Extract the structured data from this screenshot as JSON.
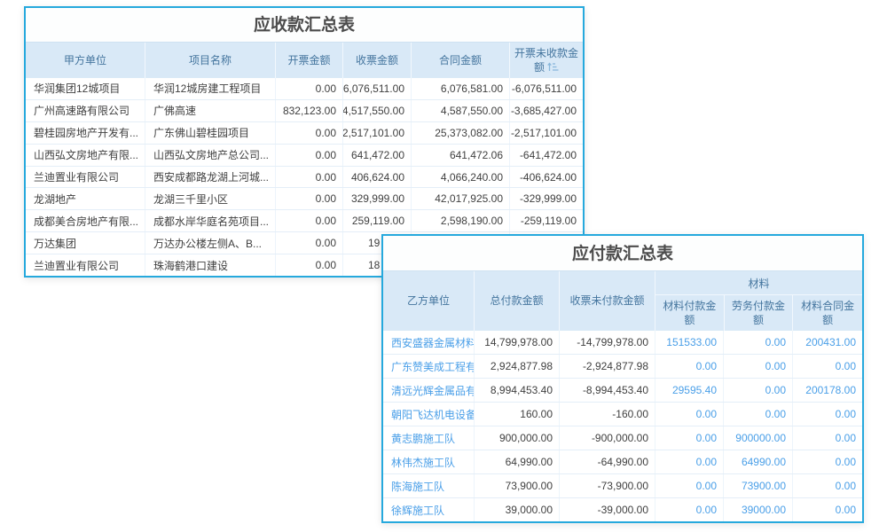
{
  "receivables": {
    "title": "应收款汇总表",
    "columns": [
      "甲方单位",
      "项目名称",
      "开票金额",
      "收票金额",
      "合同金额",
      "开票未收款金额"
    ],
    "sort_icon": "sort-amount-icon",
    "rows": [
      [
        "华润集团12城项目",
        "华润12城房建工程项目",
        "0.00",
        "6,076,511.00",
        "6,076,581.00",
        "-6,076,511.00"
      ],
      [
        "广州高速路有限公司",
        "广佛高速",
        "832,123.00",
        "4,517,550.00",
        "4,587,550.00",
        "-3,685,427.00"
      ],
      [
        "碧桂园房地产开发有...",
        "广东佛山碧桂园项目",
        "0.00",
        "2,517,101.00",
        "25,373,082.00",
        "-2,517,101.00"
      ],
      [
        "山西弘文房地产有限...",
        "山西弘文房地产总公司...",
        "0.00",
        "641,472.00",
        "641,472.06",
        "-641,472.00"
      ],
      [
        "兰迪置业有限公司",
        "西安成都路龙湖上河城...",
        "0.00",
        "406,624.00",
        "4,066,240.00",
        "-406,624.00"
      ],
      [
        "龙湖地产",
        "龙湖三千里小区",
        "0.00",
        "329,999.00",
        "42,017,925.00",
        "-329,999.00"
      ],
      [
        "成都美合房地产有限...",
        "成都水岸华庭名苑项目...",
        "0.00",
        "259,119.00",
        "2,598,190.00",
        "-259,119.00"
      ],
      [
        "万达集团",
        "万达办公楼左侧A、B...",
        "0.00",
        "19",
        "",
        ""
      ],
      [
        "兰迪置业有限公司",
        "珠海鹤港口建设",
        "0.00",
        "18",
        "",
        ""
      ]
    ]
  },
  "payables": {
    "title": "应付款汇总表",
    "columns": [
      "乙方单位",
      "总付款金额",
      "收票未付款金额"
    ],
    "group_header": "材料",
    "sub_columns": [
      "材料付款金额",
      "劳务付款金额",
      "材料合同金额"
    ],
    "rows": [
      [
        "西安盛器金属材料有",
        "14,799,978.00",
        "-14,799,978.00",
        "151533.00",
        "0.00",
        "200431.00"
      ],
      [
        "广东赞美成工程有限",
        "2,924,877.98",
        "-2,924,877.98",
        "0.00",
        "0.00",
        "0.00"
      ],
      [
        "清远光辉金属品有限",
        "8,994,453.40",
        "-8,994,453.40",
        "29595.40",
        "0.00",
        "200178.00"
      ],
      [
        "朝阳飞达机电设备有",
        "160.00",
        "-160.00",
        "0.00",
        "0.00",
        "0.00"
      ],
      [
        "黄志鹏施工队",
        "900,000.00",
        "-900,000.00",
        "0.00",
        "900000.00",
        "0.00"
      ],
      [
        "林伟杰施工队",
        "64,990.00",
        "-64,990.00",
        "0.00",
        "64990.00",
        "0.00"
      ],
      [
        "陈海施工队",
        "73,900.00",
        "-73,900.00",
        "0.00",
        "73900.00",
        "0.00"
      ],
      [
        "徐辉施工队",
        "39,000.00",
        "-39,000.00",
        "0.00",
        "39000.00",
        "0.00"
      ]
    ]
  },
  "colors": {
    "card_border": "#26a9dd",
    "header_bg": "#d9e9f7",
    "header_text": "#44759e",
    "link_blue": "#4a9fe8",
    "body_text": "#3f3f3f",
    "title_text": "#4c4c4c"
  }
}
